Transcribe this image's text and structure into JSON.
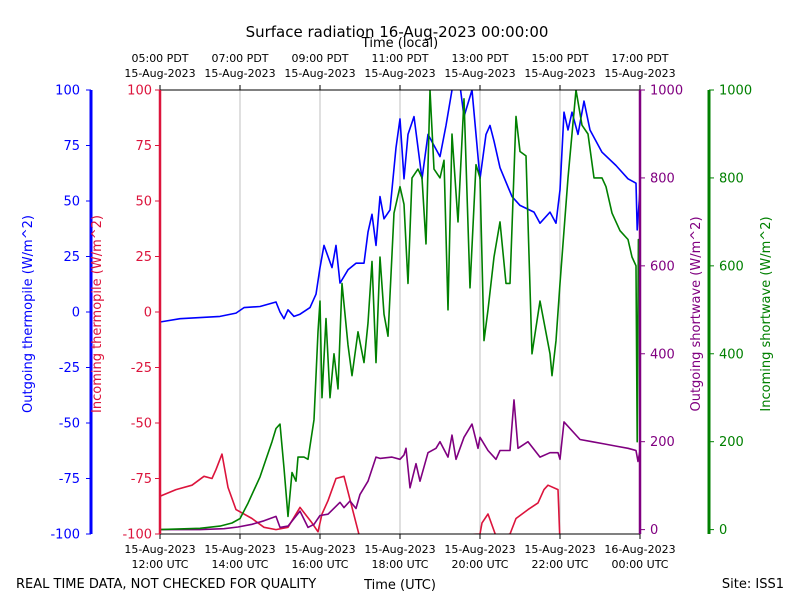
{
  "chart_data": {
    "type": "line",
    "title": "Surface radiation 16-Aug-2023 00:00:00",
    "top_xlabel": "Time (local)",
    "bottom_xlabel": "Time (UTC)",
    "footer_left": "REAL TIME DATA, NOT CHECKED FOR QUALITY",
    "footer_right": "Site: ISS1",
    "x_range_utc_hours": [
      12,
      24
    ],
    "bottom_ticks": [
      {
        "t": 12,
        "l1": "15-Aug-2023",
        "l2": "12:00 UTC"
      },
      {
        "t": 14,
        "l1": "15-Aug-2023",
        "l2": "14:00 UTC"
      },
      {
        "t": 16,
        "l1": "15-Aug-2023",
        "l2": "16:00 UTC"
      },
      {
        "t": 18,
        "l1": "15-Aug-2023",
        "l2": "18:00 UTC"
      },
      {
        "t": 20,
        "l1": "15-Aug-2023",
        "l2": "20:00 UTC"
      },
      {
        "t": 22,
        "l1": "15-Aug-2023",
        "l2": "22:00 UTC"
      },
      {
        "t": 24,
        "l1": "16-Aug-2023",
        "l2": "00:00 UTC"
      }
    ],
    "top_ticks": [
      {
        "t": 12,
        "l1": "05:00 PDT",
        "l2": "15-Aug-2023"
      },
      {
        "t": 14,
        "l1": "07:00 PDT",
        "l2": "15-Aug-2023"
      },
      {
        "t": 16,
        "l1": "09:00 PDT",
        "l2": "15-Aug-2023"
      },
      {
        "t": 18,
        "l1": "11:00 PDT",
        "l2": "15-Aug-2023"
      },
      {
        "t": 20,
        "l1": "13:00 PDT",
        "l2": "15-Aug-2023"
      },
      {
        "t": 22,
        "l1": "15:00 PDT",
        "l2": "15-Aug-2023"
      },
      {
        "t": 24,
        "l1": "17:00 PDT",
        "l2": "15-Aug-2023"
      }
    ],
    "axes": [
      {
        "key": "out_thermo",
        "label": "Outgoing thermopile (W/m^2)",
        "color": "#0000ff",
        "ylim": [
          -100,
          100
        ],
        "ticks": [
          -100,
          -75,
          -50,
          -25,
          0,
          25,
          50,
          75,
          100
        ]
      },
      {
        "key": "in_thermo",
        "label": "Incoming thermopile (W/m^2)",
        "color": "#dc143c",
        "ylim": [
          -100,
          100
        ],
        "ticks": [
          -100,
          -75,
          -50,
          -25,
          0,
          25,
          50,
          75,
          100
        ]
      },
      {
        "key": "out_sw",
        "label": "Outgoing shortwave (W/m^2)",
        "color": "#800080",
        "ylim": [
          -10,
          1000
        ],
        "ticks": [
          0,
          200,
          400,
          600,
          800,
          1000
        ]
      },
      {
        "key": "in_sw",
        "label": "Incoming shortwave (W/m^2)",
        "color": "#008000",
        "ylim": [
          -10,
          1000
        ],
        "ticks": [
          0,
          200,
          400,
          600,
          800,
          1000
        ]
      }
    ],
    "series": [
      {
        "name": "Outgoing thermopile",
        "axis": "out_thermo",
        "color": "#0000ff",
        "points": [
          [
            12,
            -4.5
          ],
          [
            12.5,
            -3
          ],
          [
            13,
            -2.5
          ],
          [
            13.5,
            -2
          ],
          [
            13.9,
            -0.5
          ],
          [
            14.1,
            2
          ],
          [
            14.5,
            2.5
          ],
          [
            14.9,
            4.5
          ],
          [
            15,
            0
          ],
          [
            15.1,
            -3
          ],
          [
            15.2,
            1
          ],
          [
            15.35,
            -2
          ],
          [
            15.5,
            -1
          ],
          [
            15.75,
            2
          ],
          [
            15.9,
            8
          ],
          [
            16,
            20
          ],
          [
            16.1,
            30
          ],
          [
            16.3,
            20
          ],
          [
            16.4,
            30
          ],
          [
            16.5,
            13
          ],
          [
            16.7,
            19
          ],
          [
            16.9,
            22
          ],
          [
            17.1,
            22
          ],
          [
            17.2,
            36
          ],
          [
            17.3,
            44
          ],
          [
            17.4,
            30
          ],
          [
            17.5,
            52
          ],
          [
            17.6,
            42
          ],
          [
            17.75,
            46
          ],
          [
            17.9,
            74
          ],
          [
            18,
            87
          ],
          [
            18.1,
            60
          ],
          [
            18.2,
            80
          ],
          [
            18.35,
            88
          ],
          [
            18.55,
            60
          ],
          [
            18.7,
            80
          ],
          [
            19,
            70
          ],
          [
            19.15,
            84
          ],
          [
            19.3,
            100
          ],
          [
            19.5,
            102
          ],
          [
            19.6,
            88
          ],
          [
            19.8,
            100
          ],
          [
            20,
            60
          ],
          [
            20.15,
            80
          ],
          [
            20.25,
            84
          ],
          [
            20.35,
            77
          ],
          [
            20.5,
            65
          ],
          [
            20.8,
            52
          ],
          [
            21,
            48
          ],
          [
            21.35,
            45
          ],
          [
            21.5,
            40
          ],
          [
            21.75,
            45
          ],
          [
            21.9,
            40
          ],
          [
            22,
            55
          ],
          [
            22.1,
            90
          ],
          [
            22.2,
            82
          ],
          [
            22.3,
            90
          ],
          [
            22.45,
            80
          ],
          [
            22.6,
            95
          ],
          [
            22.75,
            82
          ],
          [
            23.05,
            72
          ],
          [
            23.4,
            66
          ],
          [
            23.7,
            60
          ],
          [
            23.9,
            58
          ],
          [
            23.93,
            37
          ],
          [
            24,
            55
          ]
        ]
      },
      {
        "name": "Incoming thermopile",
        "axis": "in_thermo",
        "color": "#dc143c",
        "points": [
          [
            12,
            -83
          ],
          [
            12.4,
            -80
          ],
          [
            12.8,
            -78
          ],
          [
            13.1,
            -74
          ],
          [
            13.3,
            -75
          ],
          [
            13.4,
            -71
          ],
          [
            13.55,
            -64
          ],
          [
            13.7,
            -79
          ],
          [
            13.9,
            -89
          ],
          [
            14.3,
            -93
          ],
          [
            14.6,
            -97
          ],
          [
            14.9,
            -98
          ],
          [
            15.2,
            -97
          ],
          [
            15.5,
            -88
          ],
          [
            15.8,
            -95
          ],
          [
            15.95,
            -99
          ],
          [
            16.05,
            -91
          ],
          [
            16.2,
            -85
          ],
          [
            16.4,
            -75
          ],
          [
            16.6,
            -74
          ],
          [
            16.9,
            -95
          ],
          [
            17,
            -102
          ],
          [
            20,
            -100
          ],
          [
            20.05,
            -95
          ],
          [
            20.2,
            -91
          ],
          [
            20.4,
            -101
          ],
          [
            20.75,
            -100
          ],
          [
            20.9,
            -93
          ],
          [
            21.2,
            -89
          ],
          [
            21.45,
            -86
          ],
          [
            21.6,
            -80
          ],
          [
            21.7,
            -78
          ],
          [
            21.95,
            -80
          ],
          [
            22,
            -104
          ],
          [
            24,
            -104
          ]
        ]
      },
      {
        "name": "Outgoing shortwave",
        "axis": "out_sw",
        "color": "#800080",
        "points": [
          [
            12,
            0
          ],
          [
            13,
            0
          ],
          [
            13.6,
            2
          ],
          [
            13.95,
            6
          ],
          [
            14.3,
            12
          ],
          [
            14.6,
            20
          ],
          [
            14.9,
            30
          ],
          [
            15,
            5
          ],
          [
            15.2,
            8
          ],
          [
            15.5,
            42
          ],
          [
            15.7,
            5
          ],
          [
            15.85,
            12
          ],
          [
            16,
            32
          ],
          [
            16.2,
            35
          ],
          [
            16.5,
            62
          ],
          [
            16.6,
            50
          ],
          [
            16.75,
            65
          ],
          [
            16.9,
            48
          ],
          [
            17,
            80
          ],
          [
            17.2,
            110
          ],
          [
            17.4,
            165
          ],
          [
            17.5,
            162
          ],
          [
            17.8,
            165
          ],
          [
            18,
            160
          ],
          [
            18.1,
            170
          ],
          [
            18.15,
            185
          ],
          [
            18.25,
            95
          ],
          [
            18.4,
            150
          ],
          [
            18.5,
            110
          ],
          [
            18.7,
            175
          ],
          [
            18.9,
            185
          ],
          [
            19,
            200
          ],
          [
            19.2,
            165
          ],
          [
            19.3,
            215
          ],
          [
            19.4,
            160
          ],
          [
            19.6,
            210
          ],
          [
            19.8,
            240
          ],
          [
            19.95,
            185
          ],
          [
            20,
            210
          ],
          [
            20.2,
            180
          ],
          [
            20.4,
            160
          ],
          [
            20.5,
            180
          ],
          [
            20.75,
            180
          ],
          [
            20.85,
            295
          ],
          [
            20.95,
            185
          ],
          [
            21.2,
            200
          ],
          [
            21.5,
            165
          ],
          [
            21.75,
            175
          ],
          [
            21.95,
            175
          ],
          [
            22,
            160
          ],
          [
            22.1,
            245
          ],
          [
            22.5,
            205
          ],
          [
            22.8,
            200
          ],
          [
            23.1,
            195
          ],
          [
            23.4,
            190
          ],
          [
            23.7,
            185
          ],
          [
            23.9,
            180
          ],
          [
            23.95,
            155
          ],
          [
            24,
            180
          ]
        ]
      },
      {
        "name": "Incoming shortwave",
        "axis": "in_sw",
        "color": "#008000",
        "points": [
          [
            12,
            0
          ],
          [
            13,
            3
          ],
          [
            13.5,
            8
          ],
          [
            13.8,
            15
          ],
          [
            14,
            25
          ],
          [
            14.2,
            60
          ],
          [
            14.5,
            120
          ],
          [
            14.65,
            160
          ],
          [
            14.8,
            200
          ],
          [
            14.9,
            230
          ],
          [
            15,
            240
          ],
          [
            15.1,
            140
          ],
          [
            15.2,
            30
          ],
          [
            15.3,
            130
          ],
          [
            15.4,
            110
          ],
          [
            15.45,
            165
          ],
          [
            15.6,
            165
          ],
          [
            15.7,
            160
          ],
          [
            15.85,
            250
          ],
          [
            15.95,
            450
          ],
          [
            16,
            520
          ],
          [
            16.05,
            300
          ],
          [
            16.15,
            480
          ],
          [
            16.25,
            300
          ],
          [
            16.35,
            400
          ],
          [
            16.45,
            320
          ],
          [
            16.55,
            560
          ],
          [
            16.7,
            420
          ],
          [
            16.8,
            350
          ],
          [
            16.95,
            450
          ],
          [
            17.1,
            380
          ],
          [
            17.2,
            470
          ],
          [
            17.3,
            610
          ],
          [
            17.4,
            380
          ],
          [
            17.5,
            620
          ],
          [
            17.6,
            490
          ],
          [
            17.7,
            440
          ],
          [
            17.85,
            720
          ],
          [
            18,
            780
          ],
          [
            18.1,
            740
          ],
          [
            18.2,
            560
          ],
          [
            18.3,
            800
          ],
          [
            18.45,
            820
          ],
          [
            18.55,
            800
          ],
          [
            18.65,
            650
          ],
          [
            18.75,
            1000
          ],
          [
            18.85,
            820
          ],
          [
            19,
            800
          ],
          [
            19.1,
            840
          ],
          [
            19.2,
            500
          ],
          [
            19.3,
            900
          ],
          [
            19.45,
            700
          ],
          [
            19.6,
            980
          ],
          [
            19.75,
            550
          ],
          [
            19.9,
            830
          ],
          [
            20,
            800
          ],
          [
            20.1,
            430
          ],
          [
            20.2,
            500
          ],
          [
            20.35,
            620
          ],
          [
            20.5,
            700
          ],
          [
            20.65,
            560
          ],
          [
            20.75,
            560
          ],
          [
            20.9,
            940
          ],
          [
            21,
            860
          ],
          [
            21.15,
            850
          ],
          [
            21.3,
            400
          ],
          [
            21.5,
            520
          ],
          [
            21.75,
            400
          ],
          [
            21.8,
            350
          ],
          [
            21.9,
            430
          ],
          [
            22,
            560
          ],
          [
            22.2,
            800
          ],
          [
            22.4,
            1000
          ],
          [
            22.55,
            920
          ],
          [
            22.7,
            900
          ],
          [
            22.85,
            800
          ],
          [
            23.05,
            800
          ],
          [
            23.15,
            780
          ],
          [
            23.3,
            720
          ],
          [
            23.5,
            680
          ],
          [
            23.7,
            660
          ],
          [
            23.8,
            620
          ],
          [
            23.9,
            600
          ],
          [
            23.93,
            200
          ],
          [
            23.96,
            660
          ],
          [
            24,
            650
          ]
        ]
      }
    ]
  }
}
